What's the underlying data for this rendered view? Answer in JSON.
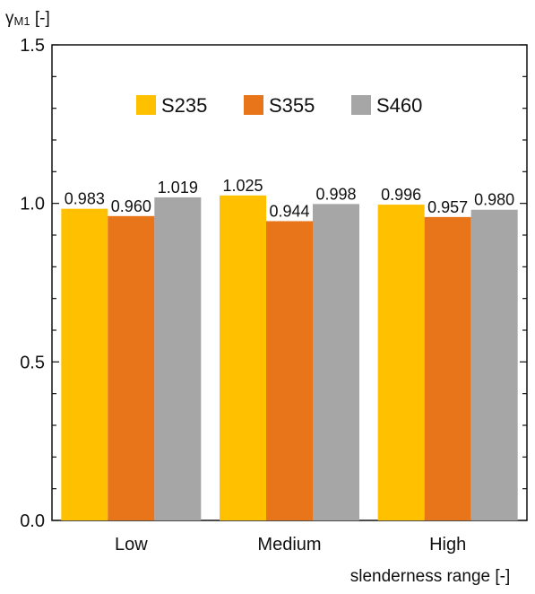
{
  "chart_data": {
    "type": "bar",
    "title": "",
    "ylabel_main": "γ",
    "ylabel_sub": "M1",
    "ylabel_unit": " [-]",
    "xlabel": "slenderness range [-]",
    "categories": [
      "Low",
      "Medium",
      "High"
    ],
    "ylim": [
      0,
      1.5
    ],
    "yticks": [
      0.0,
      0.5,
      1.0,
      1.5
    ],
    "ytick_labels": [
      "0.0",
      "0.5",
      "1.0",
      "1.5"
    ],
    "grid": false,
    "legend_position": "top-center",
    "series": [
      {
        "name": "S235",
        "color": "#FFC000",
        "values": [
          0.983,
          1.025,
          0.996
        ],
        "labels": [
          "0.983",
          "1.025",
          "0.996"
        ]
      },
      {
        "name": "S355",
        "color": "#E8751A",
        "values": [
          0.96,
          0.944,
          0.957
        ],
        "labels": [
          "0.960",
          "0.944",
          "0.957"
        ]
      },
      {
        "name": "S460",
        "color": "#A6A6A6",
        "values": [
          1.019,
          0.998,
          0.98
        ],
        "labels": [
          "1.019",
          "0.998",
          "0.980"
        ]
      }
    ]
  }
}
